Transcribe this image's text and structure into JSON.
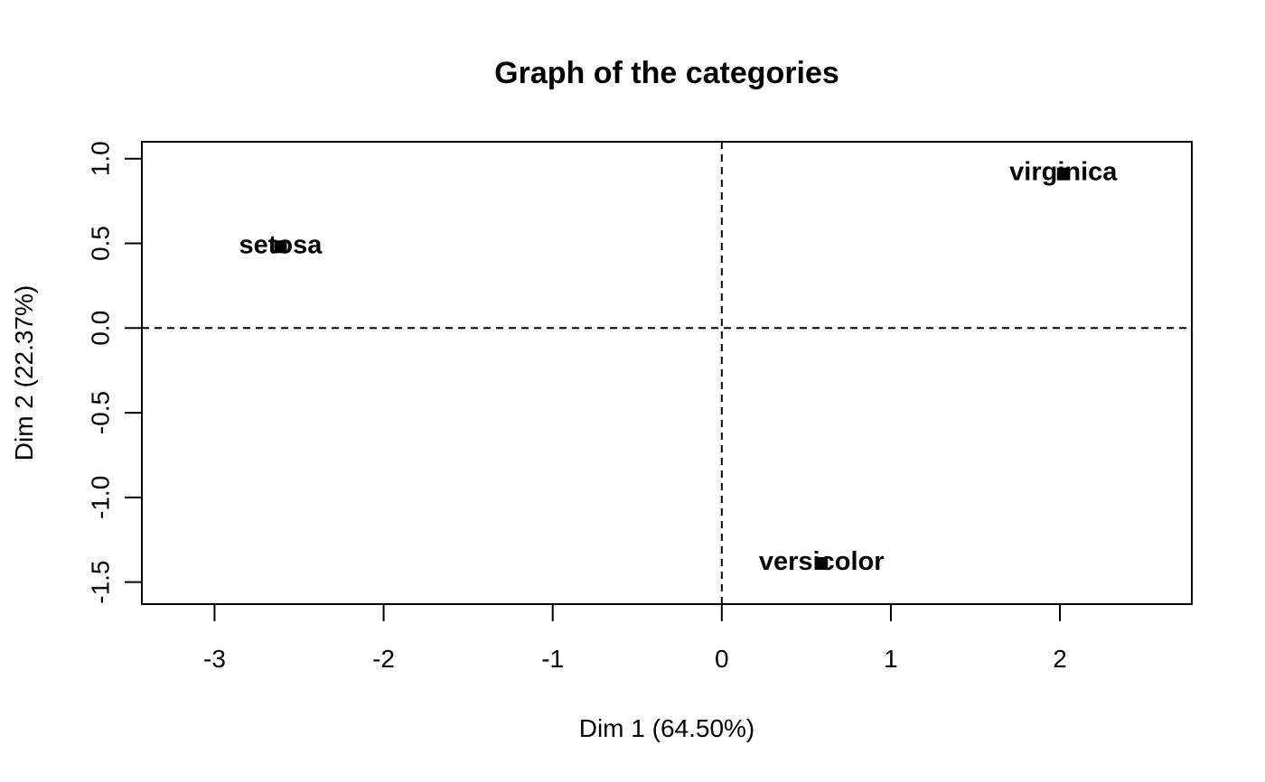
{
  "chart_data": {
    "type": "scatter",
    "title": "Graph of the categories",
    "xlabel": "Dim 1 (64.50%)",
    "ylabel": "Dim 2 (22.37%)",
    "xlim": [
      -3.43,
      2.78
    ],
    "ylim": [
      -1.63,
      1.1
    ],
    "x_ticks": [
      -3,
      -2,
      -1,
      0,
      1,
      2
    ],
    "x_tick_labels": [
      "-3",
      "-2",
      "-1",
      "0",
      "1",
      "2"
    ],
    "y_ticks": [
      -1.5,
      -1.0,
      -0.5,
      0.0,
      0.5,
      1.0
    ],
    "y_tick_labels": [
      "-1.5",
      "-1.0",
      "-0.5",
      "0.0",
      "0.5",
      "1.0"
    ],
    "reference_lines": {
      "x": 0,
      "y": 0,
      "style": "dashed"
    },
    "grid": false,
    "points": [
      {
        "label": "setosa",
        "x": -2.61,
        "y": 0.48
      },
      {
        "label": "versicolor",
        "x": 0.59,
        "y": -1.39
      },
      {
        "label": "virginica",
        "x": 2.02,
        "y": 0.91
      }
    ]
  }
}
